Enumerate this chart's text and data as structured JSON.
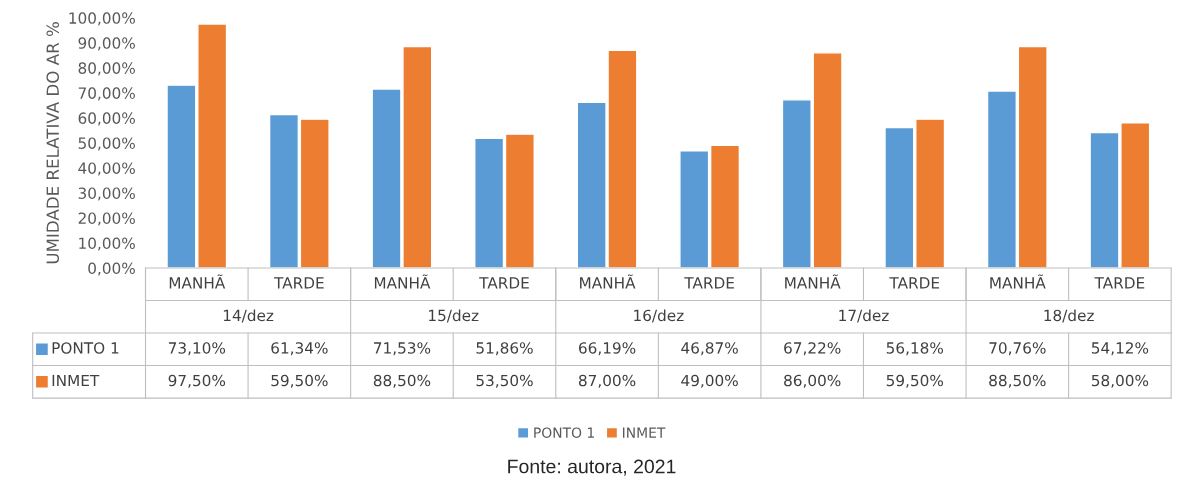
{
  "chart_data": {
    "type": "bar",
    "ylabel": "UMIDADE RELATIVA DO AR %",
    "categories": [
      "MANHÃ",
      "TARDE",
      "MANHÃ",
      "TARDE",
      "MANHÃ",
      "TARDE",
      "MANHÃ",
      "TARDE",
      "MANHÃ",
      "TARDE"
    ],
    "series": [
      {
        "name": "PONTO 1",
        "color": "#5b9bd5",
        "values": [
          73.1,
          61.34,
          71.53,
          51.86,
          66.19,
          46.87,
          67.22,
          56.18,
          70.76,
          54.12
        ],
        "value_labels": [
          "73,10%",
          "61,34%",
          "71,53%",
          "51,86%",
          "66,19%",
          "46,87%",
          "67,22%",
          "56,18%",
          "70,76%",
          "54,12%"
        ]
      },
      {
        "name": "INMET",
        "color": "#ed7d31",
        "values": [
          97.5,
          59.5,
          88.5,
          53.5,
          87.0,
          49.0,
          86.0,
          59.5,
          88.5,
          58.0
        ],
        "value_labels": [
          "97,50%",
          "59,50%",
          "88,50%",
          "53,50%",
          "87,00%",
          "49,00%",
          "86,00%",
          "59,50%",
          "88,50%",
          "58,00%"
        ]
      }
    ],
    "ylim": [
      0,
      100
    ],
    "yticks": [
      {
        "value": 0,
        "label": "0,00%"
      },
      {
        "value": 10,
        "label": "10,00%"
      },
      {
        "value": 20,
        "label": "20,00%"
      },
      {
        "value": 30,
        "label": "30,00%"
      },
      {
        "value": 40,
        "label": "40,00%"
      },
      {
        "value": 50,
        "label": "50,00%"
      },
      {
        "value": 60,
        "label": "60,00%"
      },
      {
        "value": 70,
        "label": "70,00%"
      },
      {
        "value": 80,
        "label": "80,00%"
      },
      {
        "value": 90,
        "label": "90,00%"
      },
      {
        "value": 100,
        "label": "100,00%"
      }
    ],
    "legend": "bottom",
    "annotations": [
      "14/dez",
      "15/dez",
      "16/dez",
      "17/dez",
      "18/dez",
      "Fonte: autora, 2021"
    ]
  }
}
